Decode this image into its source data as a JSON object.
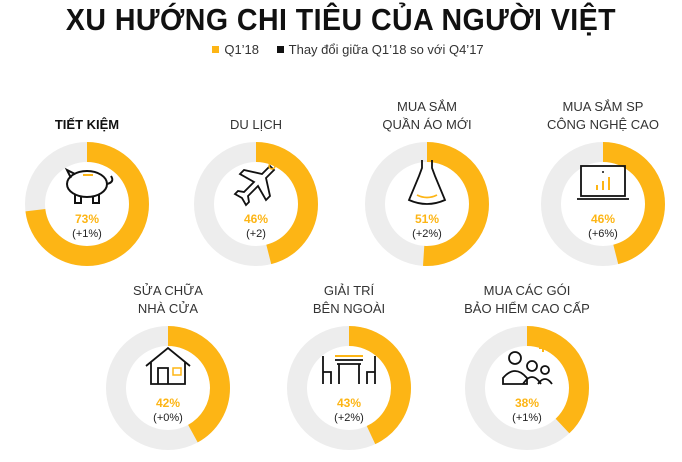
{
  "title": "XU HƯỚNG CHI TIÊU CỦA NGƯỜI VIỆT",
  "legend": [
    {
      "label": "Q1’18",
      "color": "#fdb515"
    },
    {
      "label": "Thay đổi giữa Q1’18 so với Q4’17",
      "color": "#111111"
    }
  ],
  "chart_data": {
    "type": "pie",
    "title": "XU HƯỚNG CHI TIÊU CỦA NGƯỜI VIỆT",
    "items": [
      {
        "label": [
          "TIẾT KIỆM"
        ],
        "value": 73,
        "value_label": "73%",
        "change": "(+1%)",
        "icon": "piggy-bank-icon",
        "bold": true
      },
      {
        "label": [
          "DU LỊCH"
        ],
        "value": 46,
        "value_label": "46%",
        "change": "(+2)",
        "icon": "airplane-icon"
      },
      {
        "label": [
          "MUA SẮM",
          "QUẦN ÁO MỚI"
        ],
        "value": 51,
        "value_label": "51%",
        "change": "(+2%)",
        "icon": "dress-icon"
      },
      {
        "label": [
          "MUA SẮM SP",
          "CÔNG NGHỆ CAO"
        ],
        "value": 46,
        "value_label": "46%",
        "change": "(+6%)",
        "icon": "laptop-icon"
      },
      {
        "label": [
          "SỬA CHỮA",
          "NHÀ CỬA"
        ],
        "value": 42,
        "value_label": "42%",
        "change": "(+0%)",
        "icon": "house-icon"
      },
      {
        "label": [
          "GIẢI TRÍ",
          "BÊN NGOÀI"
        ],
        "value": 43,
        "value_label": "43%",
        "change": "(+2%)",
        "icon": "table-chairs-icon"
      },
      {
        "label": [
          "MUA CÁC GÓI",
          "BẢO HIỂM CAO CẤP"
        ],
        "value": 38,
        "value_label": "38%",
        "change": "(+1%)",
        "icon": "family-icon"
      }
    ],
    "colors": {
      "fill": "#fdb515",
      "track": "#ededed"
    }
  }
}
